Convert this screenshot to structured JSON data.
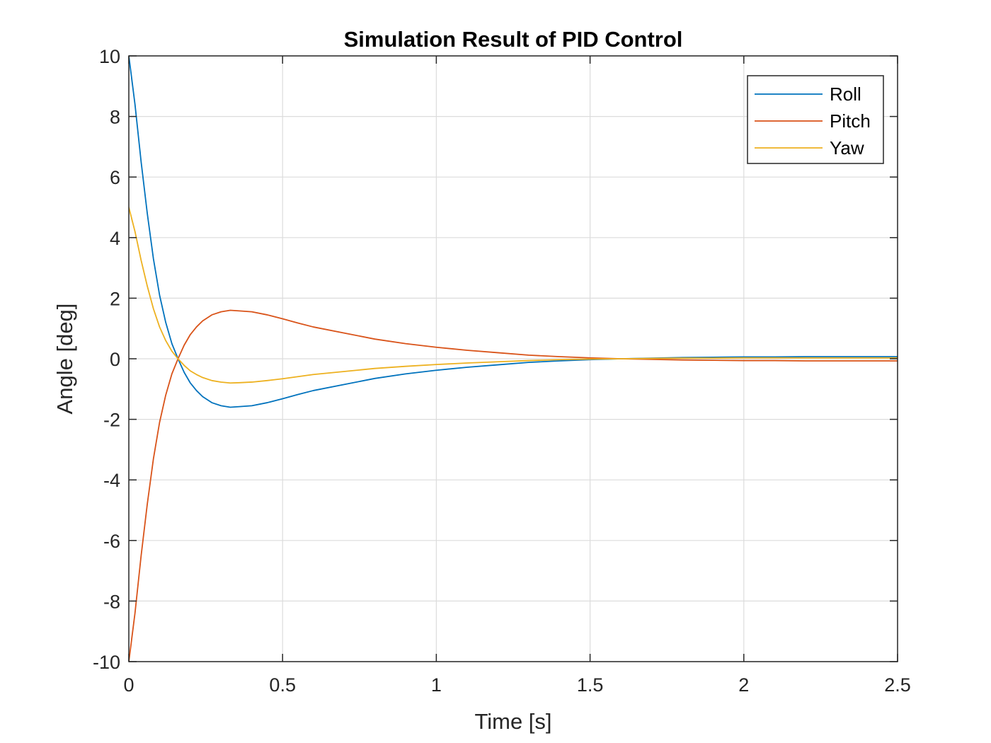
{
  "chart_data": {
    "type": "line",
    "title": "Simulation Result of PID Control",
    "xlabel": "Time [s]",
    "ylabel": "Angle [deg]",
    "xlim": [
      0,
      2.5
    ],
    "ylim": [
      -10,
      10
    ],
    "xticks": [
      0,
      0.5,
      1,
      1.5,
      2,
      2.5
    ],
    "xtick_labels": [
      "0",
      "0.5",
      "1",
      "1.5",
      "2",
      "2.5"
    ],
    "yticks": [
      -10,
      -8,
      -6,
      -4,
      -2,
      0,
      2,
      4,
      6,
      8,
      10
    ],
    "ytick_labels": [
      "-10",
      "-8",
      "-6",
      "-4",
      "-2",
      "0",
      "2",
      "4",
      "6",
      "8",
      "10"
    ],
    "grid": true,
    "legend_position": "top-right",
    "series": [
      {
        "name": "Roll",
        "color": "#0072BD",
        "x": [
          0,
          0.02,
          0.04,
          0.06,
          0.08,
          0.1,
          0.12,
          0.14,
          0.16,
          0.18,
          0.2,
          0.22,
          0.24,
          0.27,
          0.3,
          0.33,
          0.36,
          0.4,
          0.45,
          0.5,
          0.55,
          0.6,
          0.7,
          0.8,
          0.9,
          1.0,
          1.1,
          1.2,
          1.3,
          1.4,
          1.5,
          1.6,
          1.7,
          1.8,
          1.9,
          2.0,
          2.1,
          2.2,
          2.3,
          2.4,
          2.5
        ],
        "y": [
          10,
          8.4,
          6.5,
          4.8,
          3.3,
          2.1,
          1.2,
          0.5,
          0.0,
          -0.45,
          -0.8,
          -1.05,
          -1.25,
          -1.45,
          -1.55,
          -1.6,
          -1.58,
          -1.55,
          -1.45,
          -1.32,
          -1.18,
          -1.05,
          -0.85,
          -0.65,
          -0.5,
          -0.38,
          -0.28,
          -0.2,
          -0.12,
          -0.07,
          -0.03,
          0.0,
          0.02,
          0.04,
          0.05,
          0.06,
          0.06,
          0.07,
          0.07,
          0.07,
          0.07
        ]
      },
      {
        "name": "Pitch",
        "color": "#D95319",
        "x": [
          0,
          0.02,
          0.04,
          0.06,
          0.08,
          0.1,
          0.12,
          0.14,
          0.16,
          0.18,
          0.2,
          0.22,
          0.24,
          0.27,
          0.3,
          0.33,
          0.36,
          0.4,
          0.45,
          0.5,
          0.55,
          0.6,
          0.7,
          0.8,
          0.9,
          1.0,
          1.1,
          1.2,
          1.3,
          1.4,
          1.5,
          1.6,
          1.7,
          1.8,
          1.9,
          2.0,
          2.1,
          2.2,
          2.3,
          2.4,
          2.5
        ],
        "y": [
          -10,
          -8.4,
          -6.5,
          -4.8,
          -3.3,
          -2.1,
          -1.2,
          -0.5,
          0.0,
          0.45,
          0.8,
          1.05,
          1.25,
          1.45,
          1.55,
          1.6,
          1.58,
          1.55,
          1.45,
          1.32,
          1.18,
          1.05,
          0.85,
          0.65,
          0.5,
          0.38,
          0.28,
          0.2,
          0.12,
          0.07,
          0.03,
          0.0,
          -0.02,
          -0.04,
          -0.05,
          -0.06,
          -0.06,
          -0.07,
          -0.07,
          -0.07,
          -0.07
        ]
      },
      {
        "name": "Yaw",
        "color": "#EDB120",
        "x": [
          0,
          0.02,
          0.04,
          0.06,
          0.08,
          0.1,
          0.12,
          0.14,
          0.16,
          0.18,
          0.2,
          0.22,
          0.24,
          0.27,
          0.3,
          0.33,
          0.36,
          0.4,
          0.45,
          0.5,
          0.55,
          0.6,
          0.7,
          0.8,
          0.9,
          1.0,
          1.1,
          1.2,
          1.3,
          1.4,
          1.5,
          1.6,
          1.7,
          1.8,
          1.9,
          2.0,
          2.1,
          2.2,
          2.3,
          2.4,
          2.5
        ],
        "y": [
          5,
          4.2,
          3.25,
          2.4,
          1.65,
          1.05,
          0.6,
          0.25,
          0.0,
          -0.22,
          -0.4,
          -0.52,
          -0.62,
          -0.72,
          -0.77,
          -0.8,
          -0.79,
          -0.77,
          -0.72,
          -0.66,
          -0.59,
          -0.52,
          -0.42,
          -0.32,
          -0.25,
          -0.19,
          -0.14,
          -0.1,
          -0.06,
          -0.03,
          -0.01,
          0.0,
          0.01,
          0.02,
          0.02,
          0.03,
          0.03,
          0.03,
          0.03,
          0.03,
          0.03
        ]
      }
    ]
  }
}
